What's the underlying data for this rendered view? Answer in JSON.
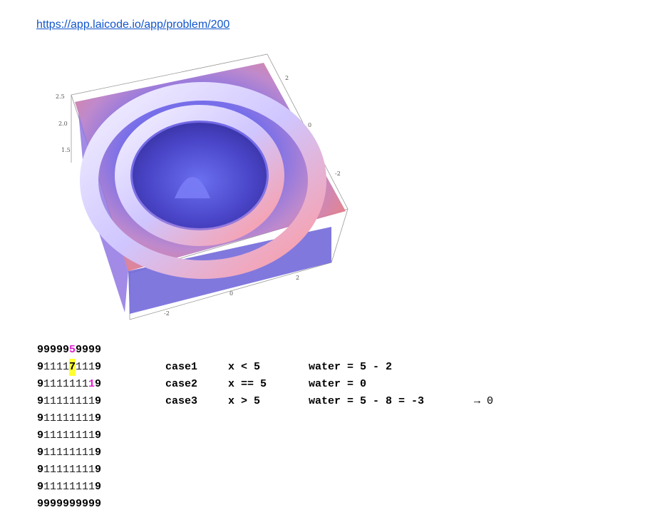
{
  "link": {
    "text": "https://app.laicode.io/app/problem/200"
  },
  "plot": {
    "icon": "3d-surface-plot",
    "z_ticks": [
      "2.5",
      "2.0",
      "1.5"
    ],
    "right_ticks": [
      "2",
      "0",
      "-2"
    ],
    "bottom_ticks": [
      "2",
      "0",
      "-2"
    ]
  },
  "grid": {
    "rows": [
      "9999959999",
      "9111171119",
      "9111111119",
      "9111111119",
      "9111111119",
      "9111111119",
      "9111111119",
      "9111111119",
      "9111111119",
      "9999999999"
    ],
    "highlights": [
      {
        "row": 0,
        "col": 5,
        "style": "magenta"
      },
      {
        "row": 1,
        "col": 5,
        "style": "yellow"
      },
      {
        "row": 2,
        "col": 8,
        "style": "magenta"
      }
    ]
  },
  "cases": [
    {
      "name": "case1",
      "cond": "x < 5",
      "water": "water = 5 - 2",
      "extra": ""
    },
    {
      "name": "case2",
      "cond": "x == 5",
      "water": "water = 0",
      "extra": ""
    },
    {
      "name": "case3",
      "cond": "x > 5",
      "water": "water = 5 - 8 = -3",
      "extra": "→ 0"
    }
  ]
}
